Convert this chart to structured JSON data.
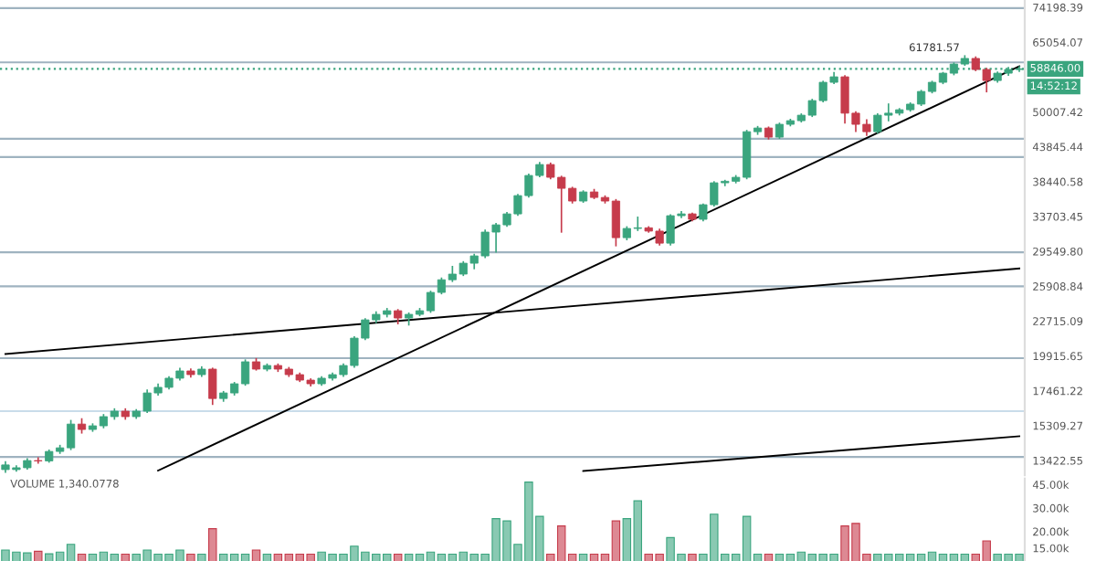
{
  "chart_data": [
    {
      "type": "candlestick",
      "categories": [
        null,
        null,
        null,
        null,
        null,
        null,
        null,
        null,
        null,
        null,
        null,
        null,
        null,
        null,
        null,
        null,
        null,
        null,
        null,
        null,
        null,
        null,
        null,
        null,
        null,
        null,
        null,
        null,
        null,
        null,
        null,
        null,
        null,
        null,
        null,
        null,
        null,
        null,
        null,
        null,
        null,
        null,
        null,
        null,
        null,
        null,
        null,
        null,
        null,
        null,
        null,
        null,
        null,
        null,
        null,
        null,
        null,
        null,
        null,
        null,
        null,
        null,
        null,
        null,
        null,
        null,
        null,
        null,
        null,
        null,
        null,
        null,
        null,
        null,
        null,
        null,
        null,
        null,
        null,
        null,
        null,
        null,
        null,
        null,
        null,
        null,
        null,
        null,
        null,
        null,
        null,
        null,
        null,
        null
      ],
      "ohlc": [
        [
          13200,
          13350,
          12850,
          12970
        ],
        [
          12970,
          13150,
          12900,
          13060
        ],
        [
          13060,
          13500,
          13000,
          13420
        ],
        [
          13420,
          13550,
          13300,
          13400
        ],
        [
          13400,
          13950,
          13350,
          13890
        ],
        [
          13890,
          14200,
          13800,
          14080
        ],
        [
          14080,
          15600,
          14000,
          15400
        ],
        [
          15400,
          15700,
          14900,
          15090
        ],
        [
          15090,
          15400,
          15000,
          15300
        ],
        [
          15300,
          15950,
          15200,
          15840
        ],
        [
          15840,
          16300,
          15700,
          16170
        ],
        [
          16170,
          16300,
          15700,
          15840
        ],
        [
          15840,
          16250,
          15750,
          16170
        ],
        [
          16170,
          17500,
          16100,
          17320
        ],
        [
          17320,
          17900,
          17200,
          17690
        ],
        [
          17690,
          18400,
          17600,
          18310
        ],
        [
          18310,
          19000,
          18200,
          18820
        ],
        [
          18820,
          18950,
          18400,
          18560
        ],
        [
          18560,
          19100,
          18450,
          18950
        ],
        [
          18950,
          19000,
          16600,
          16960
        ],
        [
          16960,
          17400,
          16800,
          17320
        ],
        [
          17320,
          18000,
          17200,
          17930
        ],
        [
          17930,
          19600,
          17850,
          19480
        ],
        [
          19480,
          19700,
          18900,
          18950
        ],
        [
          18950,
          19300,
          18850,
          19210
        ],
        [
          19210,
          19300,
          18800,
          18950
        ],
        [
          18950,
          19050,
          18450,
          18560
        ],
        [
          18560,
          18650,
          18100,
          18180
        ],
        [
          18180,
          18250,
          17800,
          17930
        ],
        [
          17930,
          18400,
          17850,
          18310
        ],
        [
          18310,
          18650,
          18200,
          18560
        ],
        [
          18560,
          19300,
          18450,
          19210
        ],
        [
          19210,
          21400,
          19100,
          21300
        ],
        [
          21300,
          22900,
          21200,
          22820
        ],
        [
          22820,
          23500,
          22600,
          23300
        ],
        [
          23300,
          23800,
          23100,
          23620
        ],
        [
          23620,
          23700,
          22500,
          22980
        ],
        [
          22980,
          23400,
          22400,
          23300
        ],
        [
          23300,
          23800,
          23200,
          23620
        ],
        [
          23620,
          25400,
          23500,
          25310
        ],
        [
          25310,
          26700,
          25200,
          26550
        ],
        [
          26550,
          27900,
          26400,
          27120
        ],
        [
          27120,
          28400,
          27000,
          28260
        ],
        [
          28260,
          29200,
          27700,
          29050
        ],
        [
          29050,
          32000,
          28900,
          31780
        ],
        [
          31780,
          32800,
          29500,
          32660
        ],
        [
          32660,
          34200,
          32500,
          34040
        ],
        [
          34040,
          36600,
          33900,
          36470
        ],
        [
          36470,
          39500,
          36300,
          39350
        ],
        [
          39350,
          41300,
          39200,
          41010
        ],
        [
          41010,
          41200,
          38900,
          39080
        ],
        [
          39080,
          39200,
          31800,
          37490
        ],
        [
          37490,
          37600,
          35500,
          35730
        ],
        [
          35730,
          37100,
          35600,
          36980
        ],
        [
          36980,
          37300,
          36100,
          36220
        ],
        [
          36220,
          36400,
          35500,
          35730
        ],
        [
          35730,
          35900,
          30200,
          31120
        ],
        [
          31120,
          32400,
          30900,
          32220
        ],
        [
          32220,
          33600,
          32000,
          32300
        ],
        [
          32300,
          32400,
          31800,
          31900
        ],
        [
          31900,
          32100,
          30300,
          30480
        ],
        [
          30480,
          33900,
          30300,
          33810
        ],
        [
          33810,
          34300,
          33600,
          34040
        ],
        [
          34040,
          34100,
          33200,
          33350
        ],
        [
          33350,
          35300,
          33200,
          35240
        ],
        [
          35240,
          38400,
          35100,
          38280
        ],
        [
          38280,
          38600,
          37900,
          38500
        ],
        [
          38500,
          39300,
          38300,
          39080
        ],
        [
          39080,
          46600,
          38900,
          46420
        ],
        [
          46420,
          47300,
          46000,
          47070
        ],
        [
          47070,
          47200,
          45200,
          45480
        ],
        [
          45480,
          47900,
          45300,
          47730
        ],
        [
          47730,
          48600,
          47500,
          48390
        ],
        [
          48390,
          49600,
          48200,
          49400
        ],
        [
          49400,
          52400,
          49200,
          52200
        ],
        [
          52200,
          56100,
          52000,
          55930
        ],
        [
          55930,
          58000,
          55700,
          57100
        ],
        [
          57100,
          57300,
          48000,
          49780
        ],
        [
          49780,
          50000,
          46500,
          47730
        ],
        [
          47730,
          48500,
          45800,
          46420
        ],
        [
          46420,
          49600,
          46200,
          49400
        ],
        [
          49400,
          51500,
          48400,
          49780
        ],
        [
          49780,
          50600,
          49500,
          50430
        ],
        [
          50430,
          51700,
          50200,
          51510
        ],
        [
          51510,
          54200,
          51300,
          54030
        ],
        [
          54030,
          56100,
          53800,
          55930
        ],
        [
          55930,
          58000,
          55700,
          57890
        ],
        [
          57890,
          60100,
          57600,
          59920
        ],
        [
          59920,
          61781.57,
          59700,
          61200
        ],
        [
          61200,
          61500,
          58500,
          58700
        ],
        [
          58700,
          58900,
          54000,
          56310
        ],
        [
          56310,
          58100,
          56000,
          57890
        ],
        [
          57890,
          59100,
          57500,
          58700
        ],
        [
          58700,
          59300,
          58300,
          58846
        ]
      ],
      "colors": [
        "#3aa57e",
        "#3aa57e",
        "#3aa57e",
        "#c63b4b",
        "#3aa57e",
        "#3aa57e",
        "#3aa57e",
        "#c63b4b",
        "#3aa57e",
        "#3aa57e",
        "#3aa57e",
        "#c63b4b",
        "#3aa57e",
        "#3aa57e",
        "#3aa57e",
        "#3aa57e",
        "#3aa57e",
        "#c63b4b",
        "#3aa57e",
        "#c63b4b",
        "#3aa57e",
        "#3aa57e",
        "#3aa57e",
        "#c63b4b",
        "#3aa57e",
        "#c63b4b",
        "#c63b4b",
        "#c63b4b",
        "#c63b4b",
        "#3aa57e",
        "#3aa57e",
        "#3aa57e",
        "#3aa57e",
        "#3aa57e",
        "#3aa57e",
        "#3aa57e",
        "#c63b4b",
        "#3aa57e",
        "#3aa57e",
        "#3aa57e",
        "#3aa57e",
        "#3aa57e",
        "#3aa57e",
        "#3aa57e",
        "#3aa57e",
        "#3aa57e",
        "#3aa57e",
        "#3aa57e",
        "#3aa57e",
        "#3aa57e",
        "#c63b4b",
        "#c63b4b",
        "#c63b4b",
        "#3aa57e",
        "#c63b4b",
        "#c63b4b",
        "#c63b4b",
        "#3aa57e",
        "#3aa57e",
        "#c63b4b",
        "#c63b4b",
        "#3aa57e",
        "#3aa57e",
        "#c63b4b",
        "#3aa57e",
        "#3aa57e",
        "#3aa57e",
        "#3aa57e",
        "#3aa57e",
        "#3aa57e",
        "#c63b4b",
        "#3aa57e",
        "#3aa57e",
        "#3aa57e",
        "#3aa57e",
        "#3aa57e",
        "#3aa57e",
        "#c63b4b",
        "#c63b4b",
        "#c63b4b",
        "#3aa57e",
        "#3aa57e",
        "#3aa57e",
        "#3aa57e",
        "#3aa57e",
        "#3aa57e",
        "#3aa57e",
        "#3aa57e",
        "#3aa57e",
        "#c63b4b",
        "#c63b4b",
        "#3aa57e",
        "#3aa57e",
        "#3aa57e"
      ],
      "series": [
        {
          "type": "line",
          "color": "#000000",
          "values": [
            null,
            null,
            null,
            null,
            null,
            null,
            null,
            null,
            null,
            null,
            null,
            null,
            null,
            null,
            12920,
            null,
            null,
            null,
            null,
            null,
            null,
            null,
            null,
            null,
            null,
            null,
            null,
            null,
            null,
            null,
            null,
            null,
            null,
            null,
            null,
            null,
            null,
            null,
            null,
            null,
            null,
            null,
            null,
            null,
            null,
            null,
            null,
            null,
            null,
            null,
            null,
            null,
            null,
            null,
            null,
            null,
            null,
            null,
            null,
            null,
            null,
            null,
            null,
            null,
            null,
            null,
            null,
            null,
            null,
            null,
            null,
            null,
            null,
            null,
            null,
            null,
            null,
            null,
            null,
            null,
            null,
            null,
            null,
            null,
            null,
            null,
            null,
            null,
            null,
            null,
            null,
            null,
            null,
            59400
          ]
        },
        {
          "type": "line",
          "color": "#000000",
          "values": [
            20060,
            null,
            null,
            null,
            null,
            null,
            null,
            null,
            null,
            null,
            null,
            null,
            null,
            null,
            null,
            null,
            null,
            null,
            null,
            null,
            null,
            null,
            null,
            null,
            null,
            null,
            null,
            null,
            null,
            null,
            null,
            null,
            null,
            null,
            null,
            null,
            null,
            null,
            null,
            null,
            null,
            null,
            null,
            null,
            null,
            null,
            null,
            null,
            null,
            null,
            null,
            null,
            null,
            null,
            null,
            null,
            null,
            null,
            null,
            null,
            null,
            null,
            null,
            null,
            null,
            null,
            null,
            null,
            null,
            null,
            null,
            null,
            null,
            null,
            null,
            null,
            null,
            null,
            null,
            null,
            null,
            null,
            null,
            null,
            null,
            null,
            null,
            null,
            null,
            null,
            null,
            null,
            null,
            27700
          ]
        },
        {
          "type": "line",
          "color": "#000000",
          "values": [
            null,
            null,
            null,
            null,
            null,
            null,
            null,
            null,
            null,
            null,
            null,
            null,
            null,
            null,
            null,
            null,
            null,
            null,
            null,
            null,
            null,
            null,
            null,
            null,
            null,
            null,
            null,
            null,
            null,
            null,
            null,
            null,
            null,
            null,
            null,
            null,
            null,
            null,
            null,
            null,
            null,
            null,
            null,
            null,
            null,
            null,
            null,
            null,
            null,
            null,
            null,
            null,
            null,
            12900,
            null,
            null,
            null,
            null,
            null,
            null,
            null,
            null,
            null,
            null,
            null,
            null,
            null,
            null,
            null,
            null,
            null,
            null,
            null,
            null,
            null,
            null,
            null,
            null,
            null,
            null,
            null,
            null,
            null,
            null,
            null,
            null,
            null,
            null,
            null,
            null,
            null,
            null,
            null,
            14710
          ]
        }
      ],
      "log": true,
      "ylim": [
        12700,
        76300
      ],
      "yticks": [
        {
          "value": 13422.55,
          "label": "13422.55"
        },
        {
          "value": 15309.27,
          "label": "15309.27"
        },
        {
          "value": 17461.22,
          "label": "17461.22"
        },
        {
          "value": 19915.65,
          "label": "19915.65"
        },
        {
          "value": 22715.09,
          "label": "22715.09"
        },
        {
          "value": 25908.84,
          "label": "25908.84"
        },
        {
          "value": 29549.8,
          "label": "29549.80"
        },
        {
          "value": 33703.45,
          "label": "33703.45"
        },
        {
          "value": 38440.58,
          "label": "38440.58"
        },
        {
          "value": 43845.44,
          "label": "43845.44"
        },
        {
          "value": 50007.42,
          "label": "50007.42"
        },
        {
          "value": 65054.07,
          "label": "65054.07"
        },
        {
          "value": 74198.39,
          "label": "74198.39"
        }
      ],
      "tick_labels": "y",
      "ref_lines": [
        {
          "axis": "y",
          "value": 74000,
          "color": "#9fb3c0"
        },
        {
          "axis": "y",
          "value": 60300,
          "color": "#9fb3c0"
        },
        {
          "axis": "y",
          "value": 45200,
          "color": "#9fb3c0"
        },
        {
          "axis": "y",
          "value": 42200,
          "color": "#9fb3c0"
        },
        {
          "axis": "y",
          "value": 29450,
          "color": "#9fb3c0"
        },
        {
          "axis": "y",
          "value": 25900,
          "color": "#9fb3c0"
        },
        {
          "axis": "y",
          "value": 19750,
          "color": "#9fb3c0"
        },
        {
          "axis": "y",
          "value": 16170,
          "color": "#c9dcea"
        },
        {
          "axis": "y",
          "value": 13600,
          "color": "#9fb3c0"
        },
        {
          "axis": "y",
          "value": 58846,
          "label": "58846.00",
          "color": "#3aa57e",
          "line_style": "dotted"
        }
      ],
      "annotations": [
        {
          "text": "61781.57",
          "y": 61781.57
        },
        "14:52:12"
      ]
    },
    {
      "type": "bar",
      "categories": [
        null,
        null,
        null,
        null,
        null,
        null,
        null,
        null,
        null,
        null,
        null,
        null,
        null,
        null,
        null,
        null,
        null,
        null,
        null,
        null,
        null,
        null,
        null,
        null,
        null,
        null,
        null,
        null,
        null,
        null,
        null,
        null,
        null,
        null,
        null,
        null,
        null,
        null,
        null,
        null,
        null,
        null,
        null,
        null,
        null,
        null,
        null,
        null,
        null,
        null,
        null,
        null,
        null,
        null,
        null,
        null,
        null,
        null,
        null,
        null,
        null,
        null,
        null,
        null,
        null,
        null,
        null,
        null,
        null,
        null,
        null,
        null,
        null,
        null,
        null,
        null,
        null,
        null,
        null,
        null,
        null,
        null,
        null,
        null,
        null,
        null,
        null,
        null,
        null,
        null,
        null,
        null,
        null,
        null
      ],
      "values": [
        14500,
        14000,
        13800,
        14200,
        13600,
        14000,
        16000,
        13500,
        13500,
        14000,
        13500,
        13500,
        13500,
        14500,
        13500,
        13500,
        14500,
        13500,
        13500,
        21000,
        13500,
        13500,
        13500,
        14500,
        13500,
        13500,
        13500,
        13500,
        13500,
        14000,
        13500,
        13500,
        15500,
        14000,
        13500,
        13500,
        13500,
        13500,
        13500,
        14000,
        13500,
        13500,
        14000,
        13500,
        13500,
        25000,
        24000,
        16000,
        47000,
        26000,
        13500,
        22000,
        13500,
        13500,
        13500,
        13500,
        24000,
        25000,
        34000,
        13500,
        13500,
        18000,
        13500,
        13500,
        13500,
        27000,
        13500,
        13500,
        26000,
        13500,
        13500,
        13500,
        13500,
        14000,
        13500,
        13500,
        13500,
        22000,
        23000,
        13500,
        13500,
        13500,
        13500,
        13500,
        13500,
        14000,
        13500,
        13500,
        13500,
        13500,
        17000,
        13500,
        13500,
        13500
      ],
      "colors": [
        "#3aa57e",
        "#3aa57e",
        "#3aa57e",
        "#c63b4b",
        "#3aa57e",
        "#3aa57e",
        "#3aa57e",
        "#c63b4b",
        "#3aa57e",
        "#3aa57e",
        "#3aa57e",
        "#c63b4b",
        "#3aa57e",
        "#3aa57e",
        "#3aa57e",
        "#3aa57e",
        "#3aa57e",
        "#c63b4b",
        "#3aa57e",
        "#c63b4b",
        "#3aa57e",
        "#3aa57e",
        "#3aa57e",
        "#c63b4b",
        "#3aa57e",
        "#c63b4b",
        "#c63b4b",
        "#c63b4b",
        "#c63b4b",
        "#3aa57e",
        "#3aa57e",
        "#3aa57e",
        "#3aa57e",
        "#3aa57e",
        "#3aa57e",
        "#3aa57e",
        "#c63b4b",
        "#3aa57e",
        "#3aa57e",
        "#3aa57e",
        "#3aa57e",
        "#3aa57e",
        "#3aa57e",
        "#3aa57e",
        "#3aa57e",
        "#3aa57e",
        "#3aa57e",
        "#3aa57e",
        "#3aa57e",
        "#3aa57e",
        "#c63b4b",
        "#c63b4b",
        "#c63b4b",
        "#3aa57e",
        "#c63b4b",
        "#c63b4b",
        "#c63b4b",
        "#3aa57e",
        "#3aa57e",
        "#c63b4b",
        "#c63b4b",
        "#3aa57e",
        "#3aa57e",
        "#c63b4b",
        "#3aa57e",
        "#3aa57e",
        "#3aa57e",
        "#3aa57e",
        "#3aa57e",
        "#3aa57e",
        "#c63b4b",
        "#3aa57e",
        "#3aa57e",
        "#3aa57e",
        "#3aa57e",
        "#3aa57e",
        "#3aa57e",
        "#c63b4b",
        "#c63b4b",
        "#c63b4b",
        "#3aa57e",
        "#3aa57e",
        "#3aa57e",
        "#3aa57e",
        "#3aa57e",
        "#3aa57e",
        "#3aa57e",
        "#3aa57e",
        "#3aa57e",
        "#c63b4b",
        "#c63b4b",
        "#3aa57e",
        "#3aa57e",
        "#3aa57e"
      ],
      "log": true,
      "ylim": [
        12000,
        50000
      ],
      "yticks": [
        {
          "value": 15000,
          "label": "15.00k"
        },
        {
          "value": 20000,
          "label": "20.00k"
        },
        {
          "value": 30000,
          "label": "30.00k"
        },
        {
          "value": 45000,
          "label": "45.00k"
        }
      ],
      "tick_labels": "y",
      "annotations": [
        "VOLUME 1,340.0778"
      ]
    }
  ]
}
